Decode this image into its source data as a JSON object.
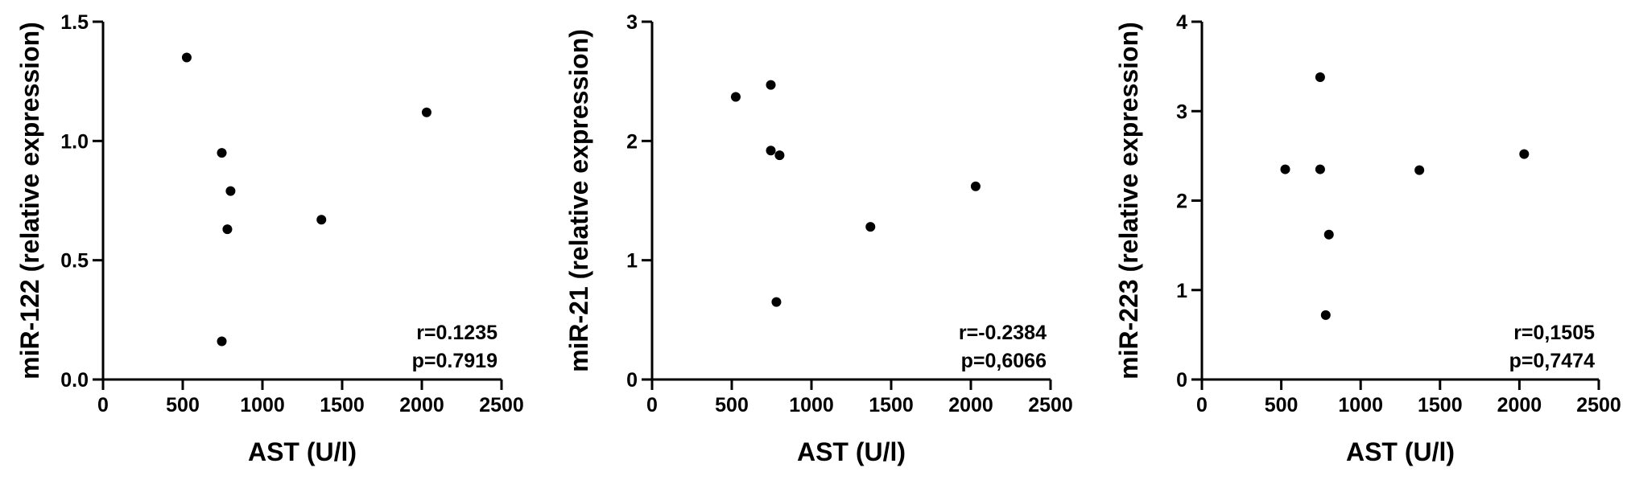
{
  "chart_data": [
    {
      "type": "scatter",
      "xlabel": "AST (U/l)",
      "ylabel": "miR-122 (relative expression)",
      "xlim": [
        0,
        2500
      ],
      "ylim": [
        0,
        1.5
      ],
      "xticks": [
        0,
        500,
        1000,
        1500,
        2000,
        2500
      ],
      "yticks": [
        0,
        0.5,
        1.0,
        1.5
      ],
      "ytick_labels": [
        "0.0",
        "0.5",
        "1.0",
        "1.5"
      ],
      "annotations": [
        "r=0.1235",
        "p=0.7919"
      ],
      "points": [
        {
          "x": 525,
          "y": 1.35
        },
        {
          "x": 745,
          "y": 0.95
        },
        {
          "x": 800,
          "y": 0.79
        },
        {
          "x": 780,
          "y": 0.63
        },
        {
          "x": 745,
          "y": 0.16
        },
        {
          "x": 1370,
          "y": 0.67
        },
        {
          "x": 2030,
          "y": 1.12
        }
      ],
      "grid": false
    },
    {
      "type": "scatter",
      "xlabel": "AST (U/l)",
      "ylabel": "miR-21 (relative expression)",
      "xlim": [
        0,
        2500
      ],
      "ylim": [
        0,
        3
      ],
      "xticks": [
        0,
        500,
        1000,
        1500,
        2000,
        2500
      ],
      "yticks": [
        0,
        1,
        2,
        3
      ],
      "ytick_labels": [
        "0",
        "1",
        "2",
        "3"
      ],
      "annotations": [
        "r=-0.2384",
        "p=0,6066"
      ],
      "points": [
        {
          "x": 525,
          "y": 2.37
        },
        {
          "x": 745,
          "y": 2.47
        },
        {
          "x": 745,
          "y": 1.92
        },
        {
          "x": 800,
          "y": 1.88
        },
        {
          "x": 780,
          "y": 0.65
        },
        {
          "x": 1370,
          "y": 1.28
        },
        {
          "x": 2030,
          "y": 1.62
        }
      ],
      "grid": false
    },
    {
      "type": "scatter",
      "xlabel": "AST (U/l)",
      "ylabel": "miR-223 (relative expression)",
      "xlim": [
        0,
        2500
      ],
      "ylim": [
        0,
        4
      ],
      "xticks": [
        0,
        500,
        1000,
        1500,
        2000,
        2500
      ],
      "yticks": [
        0,
        1,
        2,
        3,
        4
      ],
      "ytick_labels": [
        "0",
        "1",
        "2",
        "3",
        "4"
      ],
      "annotations": [
        "r=0,1505",
        "p=0,7474"
      ],
      "points": [
        {
          "x": 525,
          "y": 2.35
        },
        {
          "x": 745,
          "y": 3.38
        },
        {
          "x": 745,
          "y": 2.35
        },
        {
          "x": 800,
          "y": 1.62
        },
        {
          "x": 780,
          "y": 0.72
        },
        {
          "x": 1370,
          "y": 2.34
        },
        {
          "x": 2030,
          "y": 2.52
        }
      ],
      "grid": false
    }
  ]
}
